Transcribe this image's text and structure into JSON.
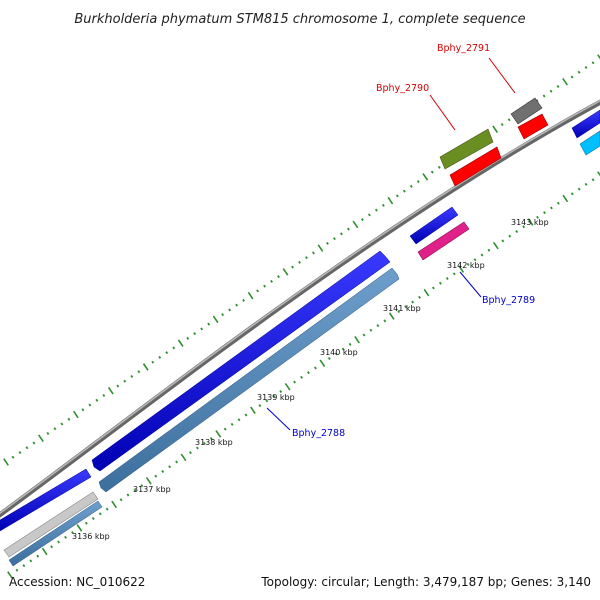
{
  "title": "Burkholderia phymatum STM815 chromosome 1, complete sequence",
  "footer": {
    "accession": "Accession: NC_010622",
    "summary": "Topology: circular; Length: 3,479,187 bp; Genes: 3,140"
  },
  "ticks": [
    {
      "label": "3136 kbp"
    },
    {
      "label": "3137 kbp"
    },
    {
      "label": "3138 kbp"
    },
    {
      "label": "3139 kbp"
    },
    {
      "label": "3140 kbp"
    },
    {
      "label": "3141 kbp"
    },
    {
      "label": "3142 kbp"
    },
    {
      "label": "3143 kbp"
    }
  ],
  "gene_labels": [
    {
      "name": "Bphy_2791",
      "color": "#d40000"
    },
    {
      "name": "Bphy_2790",
      "color": "#d40000"
    },
    {
      "name": "Bphy_2789",
      "color": "#0000cc"
    },
    {
      "name": "Bphy_2788",
      "color": "#0000cc"
    }
  ],
  "colors": {
    "backbone": "#8c8c8c",
    "tick": "#2f8f2f",
    "blue": "#0a0adc",
    "steelblue": "#4f86b8",
    "olive": "#6b8e23",
    "red": "#ff0000",
    "pink": "#e0218a",
    "gray": "#6f6f6f",
    "lightgray": "#c8c8c8",
    "cyan": "#00bfff"
  }
}
